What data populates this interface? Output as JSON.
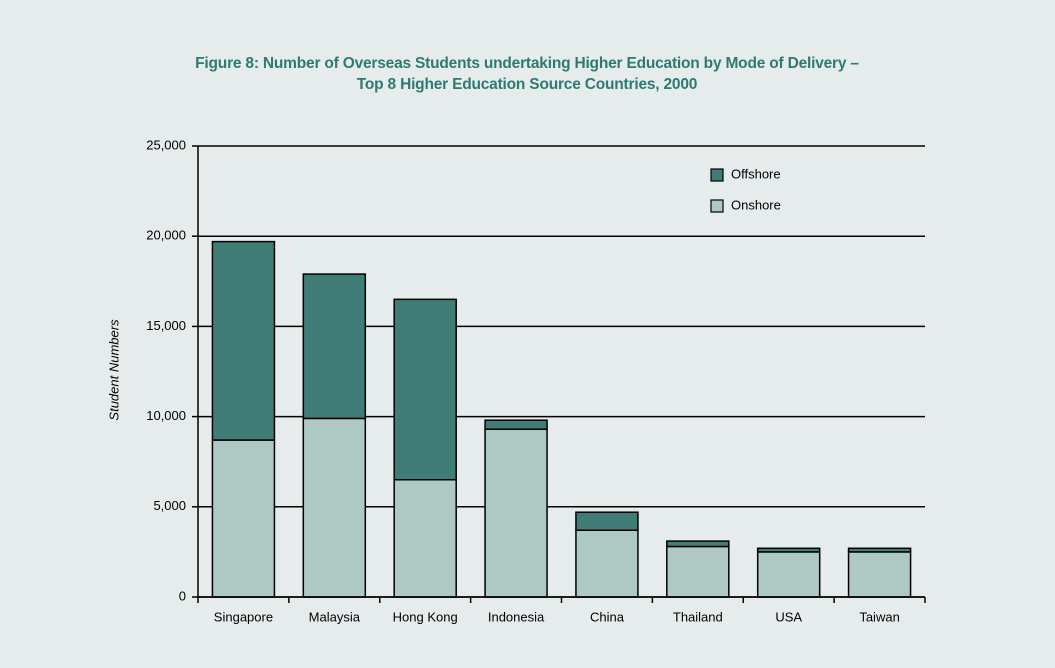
{
  "chart_data": {
    "type": "bar",
    "stacked": true,
    "title": "Figure 8: Number of Overseas Students undertaking Higher Education by Mode of Delivery – Top 8 Higher Education Source Countries, 2000",
    "y_label": "Student Numbers",
    "categories": [
      "Singapore",
      "Malaysia",
      "Hong Kong",
      "Indonesia",
      "China",
      "Thailand",
      "USA",
      "Taiwan"
    ],
    "series": [
      {
        "name": "Onshore",
        "color": "#aec8c3",
        "values": [
          8700,
          9900,
          6500,
          9300,
          3700,
          2800,
          2500,
          2500
        ]
      },
      {
        "name": "Offshore",
        "color": "#417d77",
        "values": [
          11000,
          8000,
          10000,
          500,
          1000,
          300,
          200,
          200
        ]
      }
    ],
    "ylim": [
      0,
      25000
    ],
    "yticks": [
      0,
      {
        "value": 5000,
        "label": "5,000"
      },
      {
        "value": 10000,
        "label": "10,000"
      },
      {
        "value": 15000,
        "label": "15,000"
      },
      {
        "value": 20000,
        "label": "20,000"
      },
      {
        "value": 25000,
        "label": "25,000"
      }
    ],
    "grid": true,
    "legend": "top-right"
  }
}
